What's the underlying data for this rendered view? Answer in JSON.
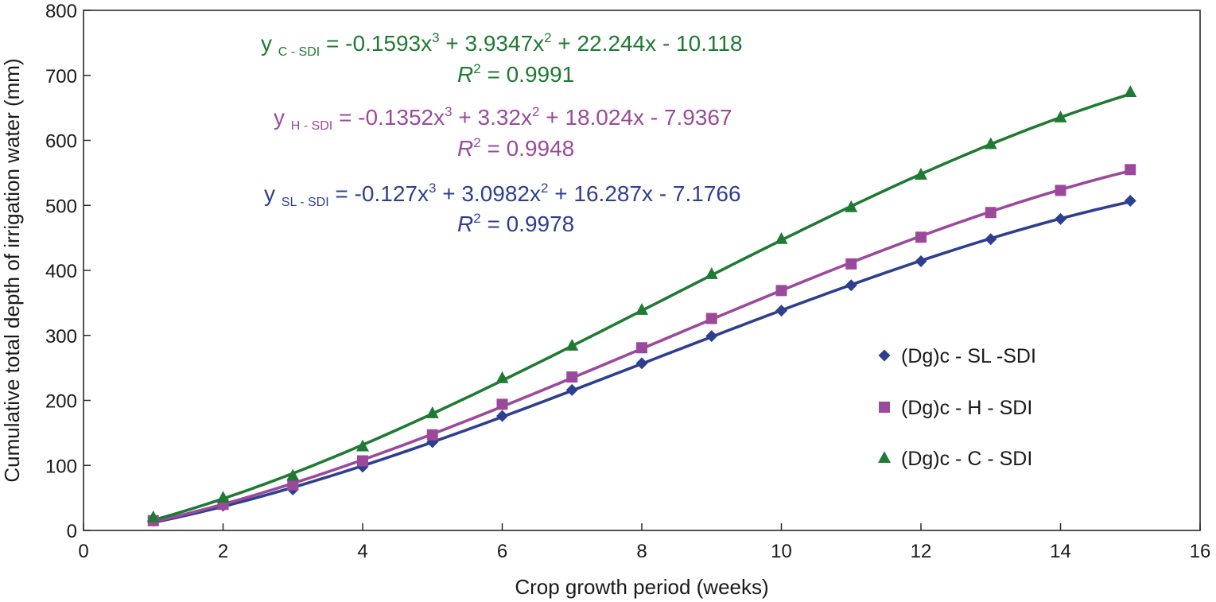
{
  "chart_data": {
    "type": "line",
    "xlabel": "Crop growth period (weeks)",
    "ylabel": "Cumulative total depth of irrigation water (mm)",
    "xlim": [
      0,
      16
    ],
    "ylim": [
      0,
      800
    ],
    "x_ticks": [
      0,
      2,
      4,
      6,
      8,
      10,
      12,
      14,
      16
    ],
    "y_ticks": [
      0,
      100,
      200,
      300,
      400,
      500,
      600,
      700,
      800
    ],
    "grid": false,
    "legend_position": "right",
    "x": [
      1,
      2,
      3,
      4,
      5,
      6,
      7,
      8,
      9,
      10,
      11,
      12,
      13,
      14,
      15
    ],
    "series": [
      {
        "name": "(Dg)c - SL -SDI",
        "marker": "diamond",
        "color": "#2e3f8f",
        "values": [
          15,
          38,
          63,
          98,
          136,
          176,
          216,
          257,
          299,
          338,
          377,
          414,
          448,
          479,
          507
        ],
        "fit": [
          -0.127,
          3.0982,
          16.287,
          -7.1766
        ]
      },
      {
        "name": "(Dg)c - H - SDI",
        "marker": "square",
        "color": "#9b4a9b",
        "values": [
          15,
          40,
          70,
          107,
          147,
          194,
          236,
          281,
          326,
          369,
          410,
          451,
          489,
          523,
          555
        ],
        "fit": [
          -0.1352,
          3.32,
          18.024,
          -7.9367
        ]
      },
      {
        "name": "(Dg)c - C - SDI",
        "marker": "triangle",
        "color": "#1f7a34",
        "values": [
          20,
          50,
          84,
          129,
          180,
          234,
          284,
          339,
          394,
          448,
          497,
          547,
          594,
          635,
          674
        ],
        "fit": [
          -0.1593,
          3.9347,
          22.244,
          -10.118
        ]
      }
    ],
    "annotations": [
      {
        "series": "(Dg)c - C - SDI",
        "color": "#1f7a34",
        "y_sub": "C - SDI",
        "c3": "-0.1593x",
        "c2": " + 3.9347x",
        "c1": " + 22.244x - 10.118",
        "r2_label": "R",
        "r2_value": " = 0.9991"
      },
      {
        "series": "(Dg)c - H - SDI",
        "color": "#9b4a9b",
        "y_sub": "H - SDI",
        "c3": "-0.1352x",
        "c2": " + 3.32x",
        "c1": " + 18.024x - 7.9367",
        "r2_label": "R",
        "r2_value": " = 0.9948"
      },
      {
        "series": "(Dg)c - SL -SDI",
        "color": "#2e3f8f",
        "y_sub": "SL - SDI",
        "c3": "-0.127x",
        "c2": " + 3.0982x",
        "c1": " + 16.287x - 7.1766",
        "r2_label": "R",
        "r2_value": " = 0.9978"
      }
    ]
  }
}
